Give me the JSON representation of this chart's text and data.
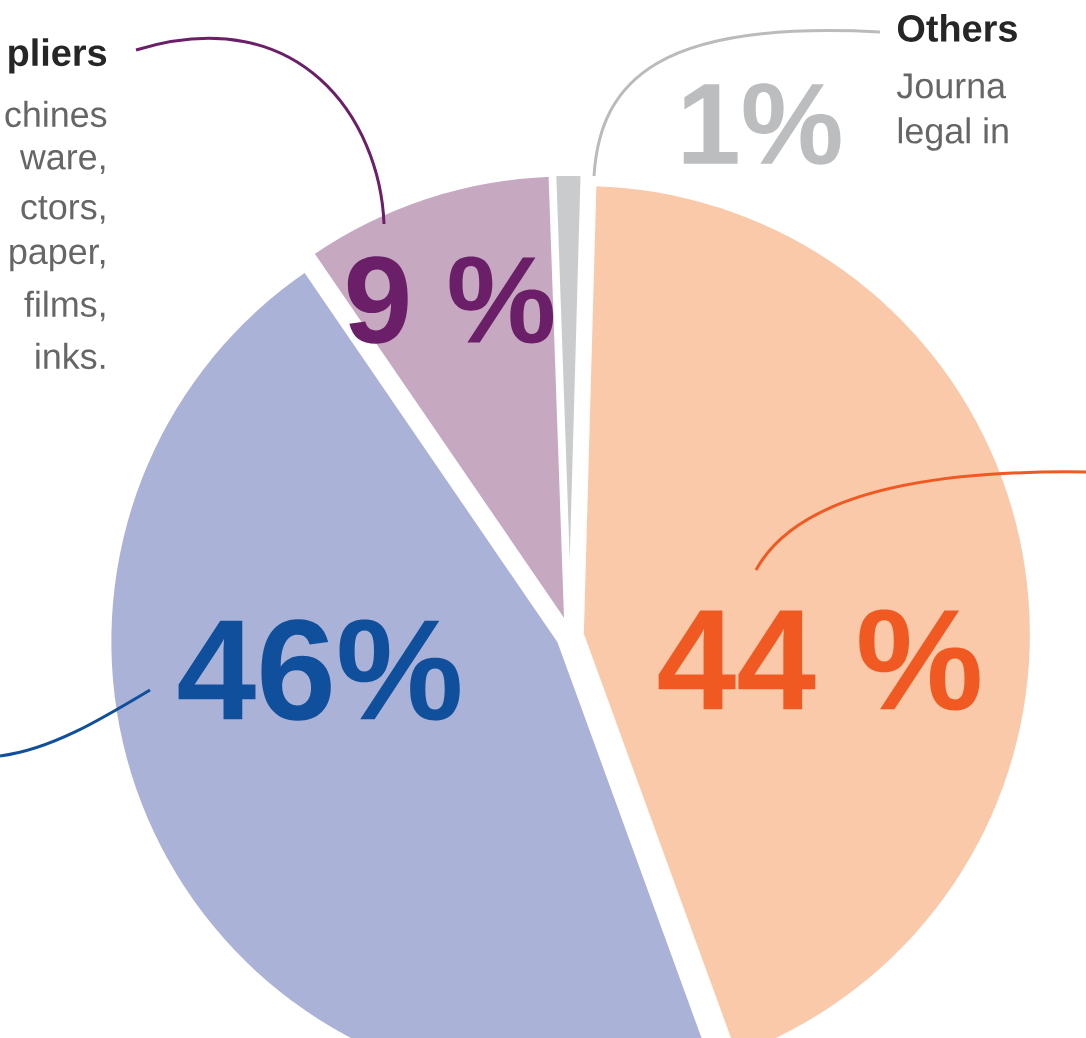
{
  "chart_data": {
    "type": "pie",
    "categories": [
      "Others",
      null,
      null,
      "pliers"
    ],
    "values": [
      1,
      44,
      46,
      9
    ],
    "colors": [
      "#c9cbcd",
      "#f9c9aa",
      "#abb2d8",
      "#c6a9c1"
    ],
    "value_labels": [
      "1%",
      "44 %",
      "46%",
      "9 %"
    ],
    "annotations": [
      "Journa",
      "legal in",
      "chines",
      "ware,",
      "ctors,",
      "paper,",
      "films,",
      "inks."
    ]
  }
}
